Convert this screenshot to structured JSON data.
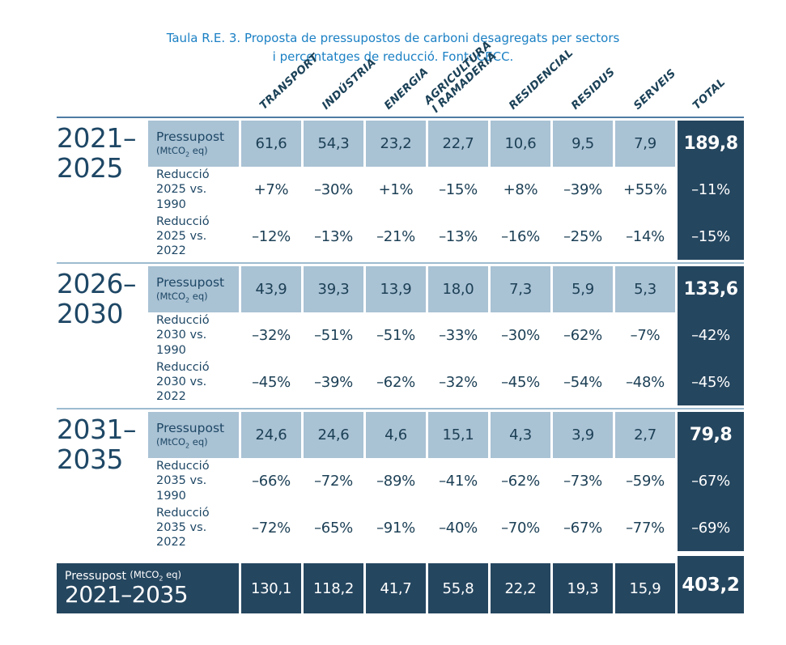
{
  "colors": {
    "dark_navy": "#25465f",
    "light_blue_cell": "#a9c2d4",
    "navy_text": "#1d4056",
    "top_rule": "#4e7ba3",
    "group_separator": "#9dbbd0",
    "caption_blue": "#1b80c4"
  },
  "header": {
    "columns": [
      {
        "key": "transport",
        "lines": [
          "TRANSPORT"
        ]
      },
      {
        "key": "industria",
        "lines": [
          "INDÚSTRIA"
        ]
      },
      {
        "key": "energia",
        "lines": [
          "ENERGIA"
        ]
      },
      {
        "key": "agricultura-i-ramaderia",
        "lines": [
          "AGRICULTURA",
          "I RAMADERIA"
        ]
      },
      {
        "key": "residencial",
        "lines": [
          "RESIDENCIAL"
        ]
      },
      {
        "key": "residus",
        "lines": [
          "RESIDUS"
        ]
      },
      {
        "key": "serveis",
        "lines": [
          "SERVEIS"
        ]
      },
      {
        "key": "total",
        "lines": [
          "TOTAL"
        ]
      }
    ]
  },
  "groups": [
    {
      "period_lines": [
        "2021–",
        "2025"
      ],
      "rows": [
        {
          "type": "budget",
          "label": "Pressupost",
          "unit_pre": "(MtCO",
          "unit_sub": "2",
          "unit_post": " eq)",
          "cells": [
            "61,6",
            "54,3",
            "23,2",
            "22,7",
            "10,6",
            "9,5",
            "7,9"
          ],
          "total": "189,8"
        },
        {
          "type": "pct",
          "label_line1": "Reducció",
          "label_line2": "2025 vs. 1990",
          "cells": [
            "+7%",
            "–30%",
            "+1%",
            "–15%",
            "+8%",
            "–39%",
            "+55%"
          ],
          "total": "–11%"
        },
        {
          "type": "pct",
          "label_line1": "Reducció",
          "label_line2": "2025 vs. 2022",
          "cells": [
            "–12%",
            "–13%",
            "–21%",
            "–13%",
            "–16%",
            "–25%",
            "–14%"
          ],
          "total": "–15%"
        }
      ]
    },
    {
      "period_lines": [
        "2026–",
        "2030"
      ],
      "rows": [
        {
          "type": "budget",
          "label": "Pressupost",
          "unit_pre": "(MtCO",
          "unit_sub": "2",
          "unit_post": " eq)",
          "cells": [
            "43,9",
            "39,3",
            "13,9",
            "18,0",
            "7,3",
            "5,9",
            "5,3"
          ],
          "total": "133,6"
        },
        {
          "type": "pct",
          "label_line1": "Reducció",
          "label_line2": "2030 vs. 1990",
          "cells": [
            "–32%",
            "–51%",
            "–51%",
            "–33%",
            "–30%",
            "–62%",
            "–7%"
          ],
          "total": "–42%"
        },
        {
          "type": "pct",
          "label_line1": "Reducció",
          "label_line2": "2030 vs. 2022",
          "cells": [
            "–45%",
            "–39%",
            "–62%",
            "–32%",
            "–45%",
            "–54%",
            "–48%"
          ],
          "total": "–45%"
        }
      ]
    },
    {
      "period_lines": [
        "2031–",
        "2035"
      ],
      "rows": [
        {
          "type": "budget",
          "label": "Pressupost",
          "unit_pre": "(MtCO",
          "unit_sub": "2",
          "unit_post": " eq)",
          "cells": [
            "24,6",
            "24,6",
            "4,6",
            "15,1",
            "4,3",
            "3,9",
            "2,7"
          ],
          "total": "79,8"
        },
        {
          "type": "pct",
          "label_line1": "Reducció",
          "label_line2": "2035 vs. 1990",
          "cells": [
            "–66%",
            "–72%",
            "–89%",
            "–41%",
            "–62%",
            "–73%",
            "–59%"
          ],
          "total": "–67%"
        },
        {
          "type": "pct",
          "label_line1": "Reducció",
          "label_line2": "2035 vs. 2022",
          "cells": [
            "–72%",
            "–65%",
            "–91%",
            "–40%",
            "–70%",
            "–67%",
            "–77%"
          ],
          "total": "–69%"
        }
      ]
    }
  ],
  "footer": {
    "label_main": "Pressupost ",
    "unit_pre": "(MtCO",
    "unit_sub": "2",
    "unit_post": " eq)",
    "period": "2021–2035",
    "cells": [
      "130,1",
      "118,2",
      "41,7",
      "55,8",
      "22,2",
      "19,3",
      "15,9"
    ],
    "total": "403,2"
  },
  "caption": {
    "line1": "Taula R.E. 3. Proposta de pressupostos de carboni desagregats per sectors",
    "line2": "i percentatges de reducció. Font: CECC."
  }
}
